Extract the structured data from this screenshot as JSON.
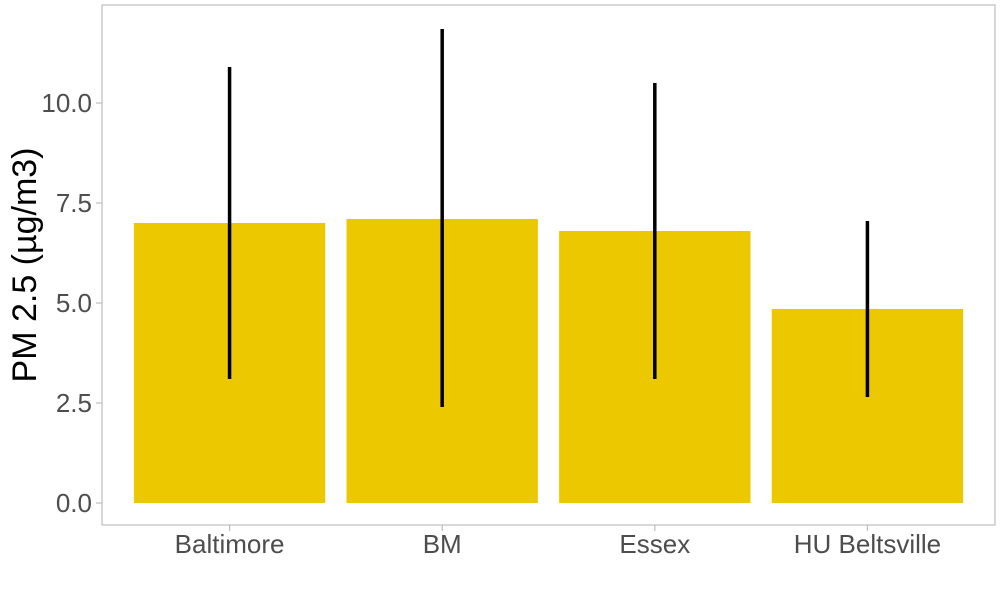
{
  "chart_data": {
    "type": "bar",
    "title": "",
    "xlabel": "",
    "ylabel": "PM 2.5 (µg/m3)",
    "categories": [
      "Baltimore",
      "BM",
      "Essex",
      "HU Beltsville"
    ],
    "values": [
      7.0,
      7.1,
      6.8,
      4.85
    ],
    "error_bars": [
      {
        "low": 3.1,
        "high": 10.9
      },
      {
        "low": 2.4,
        "high": 11.85
      },
      {
        "low": 3.1,
        "high": 10.5
      },
      {
        "low": 2.65,
        "high": 7.05
      }
    ],
    "ylim": [
      -0.55,
      12.45
    ],
    "yticks": [
      0.0,
      2.5,
      5.0,
      7.5,
      10.0
    ],
    "ytick_labels": [
      "0.0",
      "2.5",
      "5.0",
      "7.5",
      "10.0"
    ],
    "grid": false,
    "legend": "none",
    "colors": {
      "bar": "#EBC800",
      "error_bar": "#000000",
      "panel_border": "#BDBDBD",
      "tick_text": "#4D4D4D"
    }
  }
}
